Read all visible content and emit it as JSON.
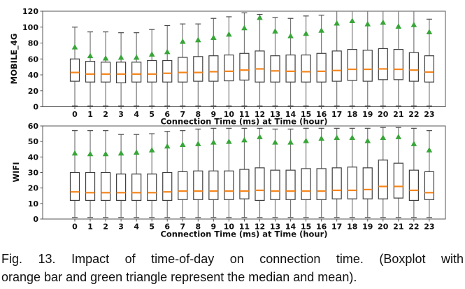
{
  "figure": {
    "caption_line1": "Fig. 13. Impact of time-of-day on connection time. (Boxplot with",
    "caption_line2": "orange bar and green triangle represent the median and mean)."
  },
  "style": {
    "median_color": "#f5861d",
    "mean_color": "#38a538",
    "box_edge_color": "#3f3f3f",
    "box_fill_color": "#ffffff",
    "whisker_color": "#787878",
    "cap_color": "#4a4a4a",
    "axis_color": "#555555",
    "text_color": "#111111"
  },
  "chart_data": [
    {
      "type": "boxplot",
      "panel": "MOBILE_4G",
      "ylabel": "MOBILE_4G",
      "xlabel": "Connection Time (ms) at Time (hour)",
      "ylim": [
        0,
        120
      ],
      "yticks": [
        0,
        20,
        40,
        60,
        80,
        100,
        120
      ],
      "grid": false,
      "legend": "none",
      "categories": [
        "0",
        "1",
        "2",
        "3",
        "4",
        "5",
        "6",
        "7",
        "8",
        "9",
        "10",
        "11",
        "12",
        "13",
        "14",
        "15",
        "16",
        "17",
        "18",
        "19",
        "20",
        "21",
        "22",
        "23"
      ],
      "stats": {
        "whisker_low": [
          1,
          1,
          1,
          1,
          1,
          1,
          1,
          1,
          1,
          1,
          1,
          1,
          1,
          1,
          1,
          1,
          1,
          1,
          1,
          1,
          1,
          1,
          1,
          1
        ],
        "q1": [
          32,
          31,
          31,
          30,
          31,
          31,
          31,
          31,
          32,
          32,
          32.5,
          33.5,
          31,
          31,
          31,
          31,
          31,
          32,
          33,
          32,
          34,
          34,
          32,
          31
        ],
        "median": [
          43,
          41,
          41,
          41,
          41,
          41,
          42,
          43,
          43,
          44,
          44.5,
          46,
          47.5,
          45,
          44.5,
          44,
          44.5,
          45.5,
          47,
          47,
          47.5,
          47,
          46,
          43.5
        ],
        "q3": [
          60,
          57,
          56,
          56,
          56,
          58,
          58,
          62,
          63,
          64,
          65,
          67,
          70,
          64,
          65,
          65,
          67,
          70,
          72,
          71,
          73,
          72,
          68,
          64
        ],
        "whisker_high": [
          100,
          94,
          94,
          93,
          93,
          97,
          102,
          104,
          104,
          111,
          113,
          118,
          116,
          112,
          111,
          114,
          115,
          120,
          120,
          120,
          120,
          120,
          120,
          110
        ],
        "mean": [
          75,
          64,
          61,
          62,
          62,
          66,
          69,
          82,
          84,
          87,
          91,
          99,
          112,
          95,
          89,
          92,
          96,
          105,
          108,
          104,
          106,
          101,
          103,
          94
        ]
      }
    },
    {
      "type": "boxplot",
      "panel": "WIFI",
      "ylabel": "WIFI",
      "xlabel": "Connection Time (ms) at Time (hour)",
      "ylim": [
        0,
        60
      ],
      "yticks": [
        0,
        10,
        20,
        30,
        40,
        50,
        60
      ],
      "grid": false,
      "legend": "none",
      "categories": [
        "0",
        "1",
        "2",
        "3",
        "4",
        "5",
        "6",
        "7",
        "8",
        "9",
        "10",
        "11",
        "12",
        "13",
        "14",
        "15",
        "16",
        "17",
        "18",
        "19",
        "20",
        "21",
        "22",
        "23"
      ],
      "stats": {
        "whisker_low": [
          1,
          1,
          1,
          1,
          1,
          1,
          1,
          1,
          1,
          1,
          1,
          1,
          1,
          1,
          1,
          1,
          1,
          1,
          1,
          1,
          1,
          1,
          1,
          1
        ],
        "q1": [
          12,
          12,
          12,
          12,
          12,
          12,
          12,
          12.5,
          12.5,
          12.5,
          12.5,
          13,
          12,
          12.5,
          12.5,
          12.5,
          12.5,
          13,
          13,
          13,
          13,
          13.5,
          12,
          12.5
        ],
        "median": [
          17.5,
          17,
          17,
          17,
          17,
          17,
          17.5,
          18,
          18,
          18,
          18,
          18,
          18.5,
          18,
          18,
          18,
          18,
          18.5,
          18.5,
          19,
          21,
          21,
          18.5,
          17
        ],
        "q3": [
          30,
          30,
          30,
          29,
          29,
          29,
          30,
          30.5,
          31,
          31,
          31,
          32,
          33,
          31.5,
          31.5,
          32.5,
          32.5,
          33,
          33.5,
          33,
          38,
          36,
          31.5,
          30.5
        ],
        "whisker_high": [
          57,
          57,
          57,
          54.5,
          54.5,
          55,
          56.5,
          57,
          58,
          58.5,
          58.5,
          58.5,
          58.5,
          58,
          58,
          58.5,
          58.5,
          58.5,
          58.5,
          58.5,
          59,
          59,
          58.5,
          57
        ],
        "mean": [
          42.5,
          42,
          42,
          42.5,
          43,
          44.5,
          47,
          48,
          48.5,
          49.5,
          50,
          51,
          53,
          49.5,
          49.5,
          50.5,
          52,
          52.5,
          52.5,
          50.5,
          52.5,
          53,
          48.5,
          44.5
        ]
      }
    }
  ]
}
